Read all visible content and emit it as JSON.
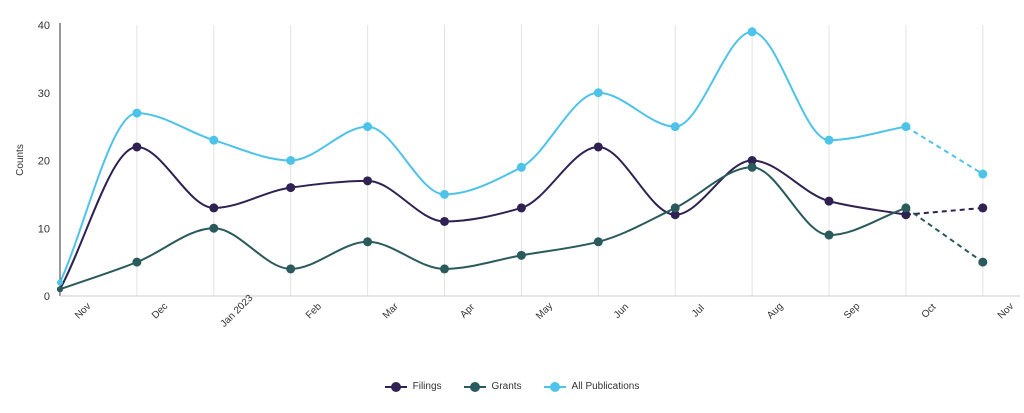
{
  "chart_data": {
    "type": "line",
    "title": "",
    "xlabel": "",
    "ylabel": "Counts",
    "ylim": [
      0,
      40
    ],
    "yticks": [
      0,
      10,
      20,
      30,
      40
    ],
    "grid": "vertical",
    "legend_position": "bottom",
    "x_tick_labels": [
      "Nov",
      "Dec",
      "Jan 2023",
      "Feb",
      "Mar",
      "Apr",
      "May",
      "Jun",
      "Jul",
      "Aug",
      "Sep",
      "Oct",
      "Nov"
    ],
    "point_months": [
      "Nov",
      "Dec",
      "Jan",
      "Feb",
      "Mar",
      "Apr",
      "May",
      "Jun",
      "Jul",
      "Aug",
      "Sep",
      "Oct",
      "Nov"
    ],
    "projected_last_point": true,
    "series": [
      {
        "name": "Filings",
        "color": "#2f2252",
        "values": [
          1,
          22,
          13,
          16,
          17,
          11,
          13,
          22,
          12,
          20,
          14,
          12,
          13
        ]
      },
      {
        "name": "Grants",
        "color": "#2a5a5c",
        "values": [
          1,
          5,
          10,
          4,
          8,
          4,
          6,
          8,
          13,
          19,
          9,
          13,
          5
        ]
      },
      {
        "name": "All Publications",
        "color": "#4ec3ea",
        "values": [
          2,
          27,
          23,
          20,
          25,
          15,
          19,
          30,
          25,
          39,
          23,
          25,
          18
        ]
      }
    ]
  }
}
